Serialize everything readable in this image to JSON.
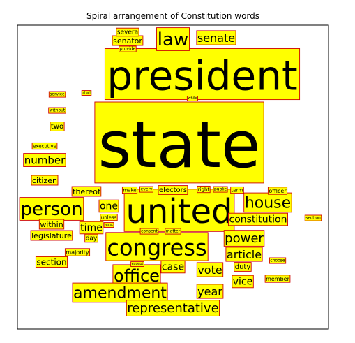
{
  "chart_data": {
    "type": "word_cloud",
    "title": "Spiral arrangement of Constitution words",
    "words": [
      {
        "text": "state",
        "weight": 1.0
      },
      {
        "text": "president",
        "weight": 0.62
      },
      {
        "text": "united",
        "weight": 0.5
      },
      {
        "text": "congress",
        "weight": 0.32
      },
      {
        "text": "law",
        "weight": 0.26
      },
      {
        "text": "person",
        "weight": 0.26
      },
      {
        "text": "house",
        "weight": 0.2
      },
      {
        "text": "office",
        "weight": 0.22
      },
      {
        "text": "amendment",
        "weight": 0.2
      },
      {
        "text": "representative",
        "weight": 0.18
      },
      {
        "text": "senate",
        "weight": 0.15
      },
      {
        "text": "power",
        "weight": 0.17
      },
      {
        "text": "number",
        "weight": 0.14
      },
      {
        "text": "constitution",
        "weight": 0.14
      },
      {
        "text": "article",
        "weight": 0.15
      },
      {
        "text": "year",
        "weight": 0.16
      },
      {
        "text": "vote",
        "weight": 0.16
      },
      {
        "text": "time",
        "weight": 0.13
      },
      {
        "text": "one",
        "weight": 0.13
      },
      {
        "text": "case",
        "weight": 0.13
      },
      {
        "text": "vice",
        "weight": 0.13
      },
      {
        "text": "legislature",
        "weight": 0.1
      },
      {
        "text": "section",
        "weight": 0.1
      },
      {
        "text": "citizen",
        "weight": 0.09
      },
      {
        "text": "senator",
        "weight": 0.09
      },
      {
        "text": "thereof",
        "weight": 0.09
      },
      {
        "text": "within",
        "weight": 0.09
      },
      {
        "text": "duty",
        "weight": 0.08
      },
      {
        "text": "electors",
        "weight": 0.08
      },
      {
        "text": "two",
        "weight": 0.08
      },
      {
        "text": "majority",
        "weight": 0.06
      },
      {
        "text": "day",
        "weight": 0.07
      },
      {
        "text": "severa",
        "weight": 0.06
      },
      {
        "text": "member",
        "weight": 0.06
      },
      {
        "text": "make",
        "weight": 0.06
      },
      {
        "text": "right",
        "weight": 0.06
      },
      {
        "text": "officer",
        "weight": 0.06
      },
      {
        "text": "term",
        "weight": 0.06
      },
      {
        "text": "public",
        "weight": 0.05
      },
      {
        "text": "every",
        "weight": 0.05
      },
      {
        "text": "unless",
        "weight": 0.05
      },
      {
        "text": "executive",
        "weight": 0.05
      },
      {
        "text": "without",
        "weight": 0.05
      },
      {
        "text": "service",
        "weight": 0.04
      },
      {
        "text": "provide",
        "weight": 0.04
      },
      {
        "text": "consent",
        "weight": 0.04
      },
      {
        "text": "matter",
        "weight": 0.04
      },
      {
        "text": "choose",
        "weight": 0.04
      },
      {
        "text": "section",
        "weight": 0.04
      },
      {
        "text": "while",
        "weight": 0.03
      },
      {
        "text": "shall",
        "weight": 0.03
      },
      {
        "text": "least",
        "weight": 0.03
      },
      {
        "text": "except",
        "weight": 0.03
      }
    ]
  }
}
